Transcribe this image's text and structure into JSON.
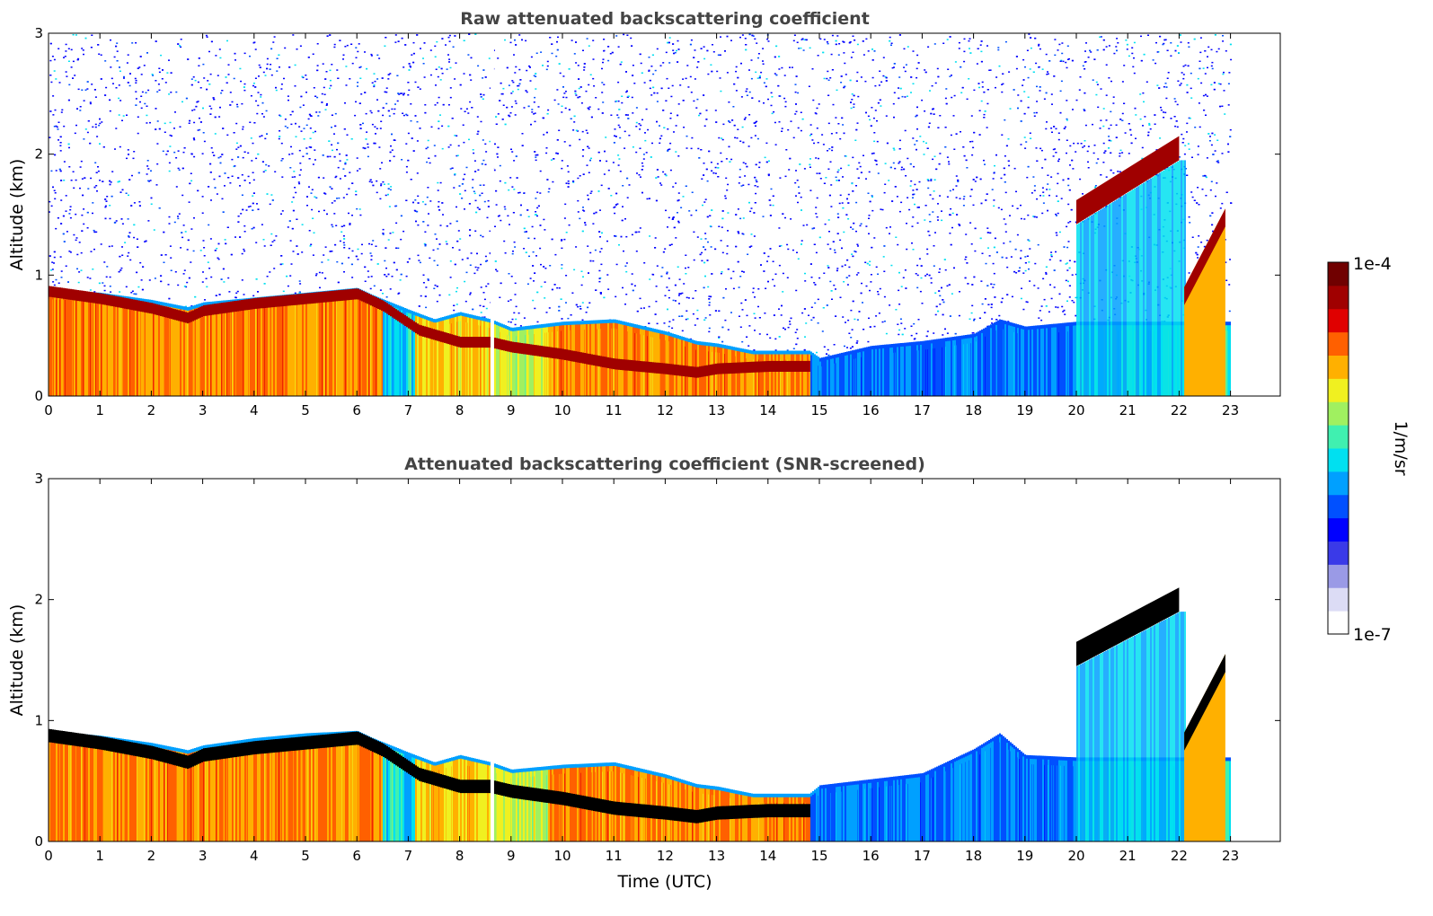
{
  "chart_data": [
    {
      "type": "heatmap",
      "title": "Raw attenuated backscattering coefficient",
      "xlabel": "",
      "ylabel": "Altitude (km)",
      "xlim": [
        0,
        24
      ],
      "ylim": [
        0,
        3
      ],
      "xticks": [
        "0",
        "1",
        "2",
        "3",
        "4",
        "5",
        "6",
        "7",
        "8",
        "9",
        "10",
        "11",
        "12",
        "13",
        "14",
        "15",
        "16",
        "17",
        "18",
        "19",
        "20",
        "21",
        "22",
        "23"
      ],
      "yticks": [
        "0",
        "1",
        "2",
        "3"
      ],
      "data_end_hour": 23,
      "gap_hour": 8.67,
      "noise_level": "high",
      "layer_top_km": [
        [
          0,
          0.86
        ],
        [
          1,
          0.84
        ],
        [
          2,
          0.78
        ],
        [
          2.7,
          0.72
        ],
        [
          3,
          0.76
        ],
        [
          4,
          0.8
        ],
        [
          5,
          0.84
        ],
        [
          6,
          0.88
        ],
        [
          6.3,
          0.82
        ],
        [
          7,
          0.7
        ],
        [
          7.5,
          0.62
        ],
        [
          8,
          0.68
        ],
        [
          8.6,
          0.62
        ],
        [
          9,
          0.55
        ],
        [
          10,
          0.6
        ],
        [
          11,
          0.62
        ],
        [
          12,
          0.52
        ],
        [
          12.6,
          0.44
        ],
        [
          13,
          0.42
        ],
        [
          13.7,
          0.36
        ],
        [
          14.8,
          0.36
        ],
        [
          15,
          0.3
        ],
        [
          16,
          0.4
        ],
        [
          17,
          0.44
        ],
        [
          18,
          0.5
        ],
        [
          18.5,
          0.62
        ],
        [
          19,
          0.56
        ],
        [
          20,
          0.6
        ]
      ],
      "cloud_base_km": [
        [
          0,
          0.82
        ],
        [
          1,
          0.76
        ],
        [
          2,
          0.68
        ],
        [
          2.7,
          0.6
        ],
        [
          3,
          0.66
        ],
        [
          4,
          0.72
        ],
        [
          5,
          0.76
        ],
        [
          6,
          0.8
        ],
        [
          6.5,
          0.7
        ],
        [
          7.2,
          0.5
        ],
        [
          8,
          0.4
        ],
        [
          8.6,
          0.4
        ],
        [
          9,
          0.36
        ],
        [
          10,
          0.3
        ],
        [
          11,
          0.22
        ],
        [
          12,
          0.18
        ],
        [
          12.6,
          0.15
        ],
        [
          13,
          0.18
        ],
        [
          14,
          0.2
        ],
        [
          14.8,
          0.2
        ]
      ],
      "cloud_thickness_km": 0.09,
      "elevated_cloud": {
        "x": [
          20,
          22
        ],
        "base_km": [
          1.42,
          1.95
        ],
        "thickness_km": 0.2
      },
      "tilted_cloud": {
        "x": [
          22.1,
          22.9
        ],
        "base_km": [
          0.9,
          1.55
        ]
      },
      "colorbar": {
        "min_label": "1e-7",
        "max_label": "1e-4",
        "label": "1/m/sr",
        "scale": "log"
      }
    },
    {
      "type": "heatmap",
      "title": "Attenuated backscattering coefficient (SNR-screened)",
      "xlabel": "Time (UTC)",
      "ylabel": "Altitude (km)",
      "xlim": [
        0,
        24
      ],
      "ylim": [
        0,
        3
      ],
      "xticks": [
        "0",
        "1",
        "2",
        "3",
        "4",
        "5",
        "6",
        "7",
        "8",
        "9",
        "10",
        "11",
        "12",
        "13",
        "14",
        "15",
        "16",
        "17",
        "18",
        "19",
        "20",
        "21",
        "22",
        "23"
      ],
      "yticks": [
        "0",
        "1",
        "2",
        "3"
      ],
      "data_end_hour": 23,
      "gap_hour": 8.67,
      "noise_level": "none",
      "saturation_color": "#000000",
      "layer_top_km": [
        [
          0,
          0.9
        ],
        [
          1,
          0.86
        ],
        [
          2,
          0.8
        ],
        [
          2.7,
          0.74
        ],
        [
          3,
          0.78
        ],
        [
          4,
          0.84
        ],
        [
          5,
          0.88
        ],
        [
          6,
          0.9
        ],
        [
          6.3,
          0.84
        ],
        [
          7,
          0.72
        ],
        [
          7.5,
          0.64
        ],
        [
          8,
          0.7
        ],
        [
          8.6,
          0.64
        ],
        [
          9,
          0.58
        ],
        [
          10,
          0.62
        ],
        [
          11,
          0.64
        ],
        [
          12,
          0.54
        ],
        [
          12.6,
          0.46
        ],
        [
          13,
          0.44
        ],
        [
          13.7,
          0.38
        ],
        [
          14.8,
          0.38
        ],
        [
          15,
          0.45
        ],
        [
          16,
          0.5
        ],
        [
          17,
          0.55
        ],
        [
          18,
          0.75
        ],
        [
          18.5,
          0.88
        ],
        [
          19,
          0.7
        ],
        [
          20,
          0.68
        ]
      ],
      "cloud_base_km": [
        [
          0,
          0.82
        ],
        [
          1,
          0.76
        ],
        [
          2,
          0.68
        ],
        [
          2.7,
          0.6
        ],
        [
          3,
          0.66
        ],
        [
          4,
          0.72
        ],
        [
          5,
          0.76
        ],
        [
          6,
          0.8
        ],
        [
          6.5,
          0.7
        ],
        [
          7.2,
          0.5
        ],
        [
          8,
          0.4
        ],
        [
          8.6,
          0.4
        ],
        [
          9,
          0.36
        ],
        [
          10,
          0.3
        ],
        [
          11,
          0.22
        ],
        [
          12,
          0.18
        ],
        [
          12.6,
          0.15
        ],
        [
          13,
          0.18
        ],
        [
          14,
          0.2
        ],
        [
          14.8,
          0.2
        ]
      ],
      "cloud_thickness_km": 0.11,
      "elevated_cloud": {
        "x": [
          20,
          22
        ],
        "base_km": [
          1.45,
          1.9
        ],
        "thickness_km": 0.2
      },
      "tilted_cloud": {
        "x": [
          22.1,
          22.9
        ],
        "base_km": [
          0.9,
          1.55
        ]
      },
      "colorbar": {
        "min_label": "1e-7",
        "max_label": "1e-4",
        "label": "1/m/sr",
        "scale": "log"
      }
    }
  ],
  "colormap": [
    "#ffffff",
    "#dcdcf5",
    "#9a9ae6",
    "#3a3ae8",
    "#0000ff",
    "#0050ff",
    "#00a0ff",
    "#00e0f0",
    "#40f0b0",
    "#a0f060",
    "#f0f020",
    "#ffb000",
    "#ff6000",
    "#e00000",
    "#a00000",
    "#700000"
  ]
}
